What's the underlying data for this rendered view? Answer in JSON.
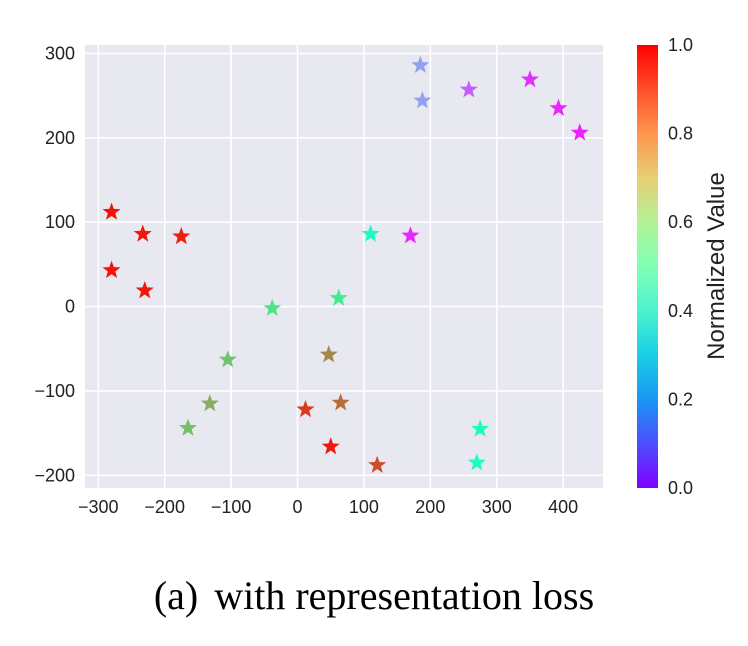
{
  "caption": {
    "label": "(a)",
    "text": "with representation loss"
  },
  "chart_data": {
    "type": "scatter",
    "marker": "star",
    "title": "",
    "xlabel": "",
    "ylabel": "",
    "xlim": [
      -320,
      460
    ],
    "ylim": [
      -215,
      310
    ],
    "xticks": [
      -300,
      -200,
      -100,
      0,
      100,
      200,
      300,
      400
    ],
    "yticks": [
      -200,
      -100,
      0,
      100,
      200,
      300
    ],
    "xtick_labels": [
      "−300",
      "−200",
      "−100",
      "0",
      "100",
      "200",
      "300",
      "400"
    ],
    "ytick_labels": [
      "−200",
      "−100",
      "0",
      "100",
      "200",
      "300"
    ],
    "grid": true,
    "background": "#e8e8f0",
    "colormap": "rainbow",
    "colorbar": {
      "label": "Normalized Value",
      "range": [
        0.0,
        1.0
      ],
      "ticks": [
        0.0,
        0.2,
        0.4,
        0.6,
        0.8,
        1.0
      ],
      "tick_labels": [
        "0.0",
        "0.2",
        "0.4",
        "0.6",
        "0.8",
        "1.0"
      ]
    },
    "points": [
      {
        "x": 185,
        "y": 286,
        "value": 0.22
      },
      {
        "x": 188,
        "y": 244,
        "value": 0.22
      },
      {
        "x": 258,
        "y": 257,
        "value": 0.12
      },
      {
        "x": 350,
        "y": 269,
        "value": 0.06
      },
      {
        "x": 393,
        "y": 235,
        "value": 0.05
      },
      {
        "x": 425,
        "y": 206,
        "value": 0.04
      },
      {
        "x": 170,
        "y": 84,
        "value": 0.05
      },
      {
        "x": 110,
        "y": 86,
        "value": 0.45
      },
      {
        "x": 62,
        "y": 10,
        "value": 0.62
      },
      {
        "x": -38,
        "y": -2,
        "value": 0.65
      },
      {
        "x": -105,
        "y": -63,
        "value": 0.72
      },
      {
        "x": -132,
        "y": -115,
        "value": 0.76
      },
      {
        "x": -165,
        "y": -144,
        "value": 0.73
      },
      {
        "x": 47,
        "y": -57,
        "value": 0.82
      },
      {
        "x": 12,
        "y": -122,
        "value": 0.93
      },
      {
        "x": 65,
        "y": -114,
        "value": 0.86
      },
      {
        "x": 50,
        "y": -166,
        "value": 0.97
      },
      {
        "x": 120,
        "y": -188,
        "value": 0.9
      },
      {
        "x": 275,
        "y": -145,
        "value": 0.45
      },
      {
        "x": 270,
        "y": -185,
        "value": 0.45
      },
      {
        "x": -280,
        "y": 112,
        "value": 0.98
      },
      {
        "x": -233,
        "y": 86,
        "value": 0.97
      },
      {
        "x": -175,
        "y": 83,
        "value": 0.96
      },
      {
        "x": -280,
        "y": 43,
        "value": 0.98
      },
      {
        "x": -230,
        "y": 19,
        "value": 0.97
      }
    ]
  }
}
